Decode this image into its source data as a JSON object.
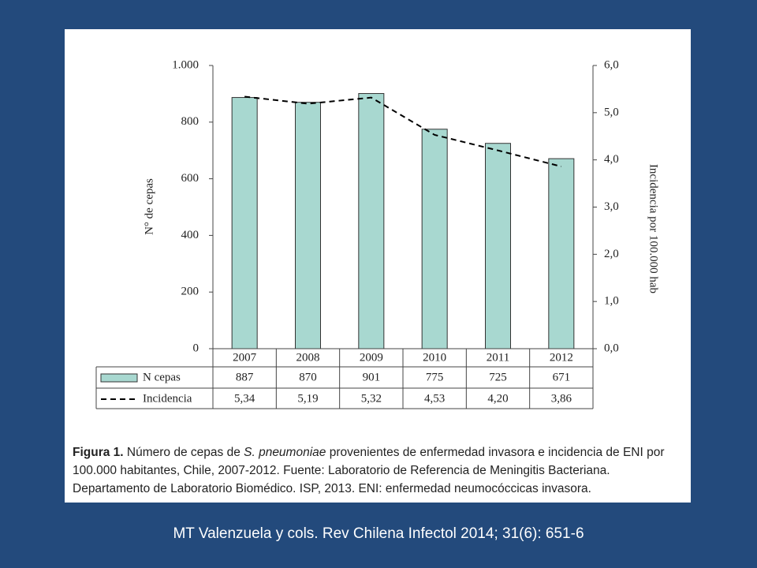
{
  "chart_data": {
    "type": "bar",
    "categories": [
      "2007",
      "2008",
      "2009",
      "2010",
      "2011",
      "2012"
    ],
    "series": [
      {
        "name": "N cepas",
        "color": "#a8d8d0",
        "values": [
          887,
          870,
          901,
          775,
          725,
          671
        ]
      },
      {
        "name": "Incidencia",
        "color": "#000000",
        "axis": "y2",
        "values": [
          5.34,
          5.19,
          5.32,
          4.53,
          4.2,
          3.86
        ],
        "value_labels": [
          "5,34",
          "5,19",
          "5,32",
          "4,53",
          "4,20",
          "3,86"
        ]
      }
    ],
    "ylabel": "N° de cepas",
    "y2label": "Incidencia por 100.000 hab",
    "ylim": [
      0,
      1000
    ],
    "yticks": [
      0,
      200,
      400,
      600,
      800,
      {
        "value": 1000,
        "label": "1.000"
      }
    ],
    "y2lim": [
      0,
      6
    ],
    "y2ticks": [
      {
        "value": 0,
        "label": "0,0"
      },
      {
        "value": 1,
        "label": "1,0"
      },
      {
        "value": 2,
        "label": "2,0"
      },
      {
        "value": 3,
        "label": "3,0"
      },
      {
        "value": 4,
        "label": "4,0"
      },
      {
        "value": 5,
        "label": "5,0"
      },
      {
        "value": 6,
        "label": "6,0"
      }
    ],
    "caption": {
      "label": "Figura 1.",
      "parts": [
        "Número de cepas de ",
        "S. pneumoniae",
        " provenientes de  enfermedad invasora  e incidencia de ENI por 100.000 habitantes, Chile, 2007-2012. Fuente: Laboratorio de Referencia de Meningitis Bacteriana. Departamento de Laboratorio Biomédico. ISP, 2013. ENI: enfermedad neumocóccicas invasora."
      ]
    }
  },
  "footer": "MT Valenzuela y cols. Rev Chilena Infectol 2014; 31(6): 651-6"
}
